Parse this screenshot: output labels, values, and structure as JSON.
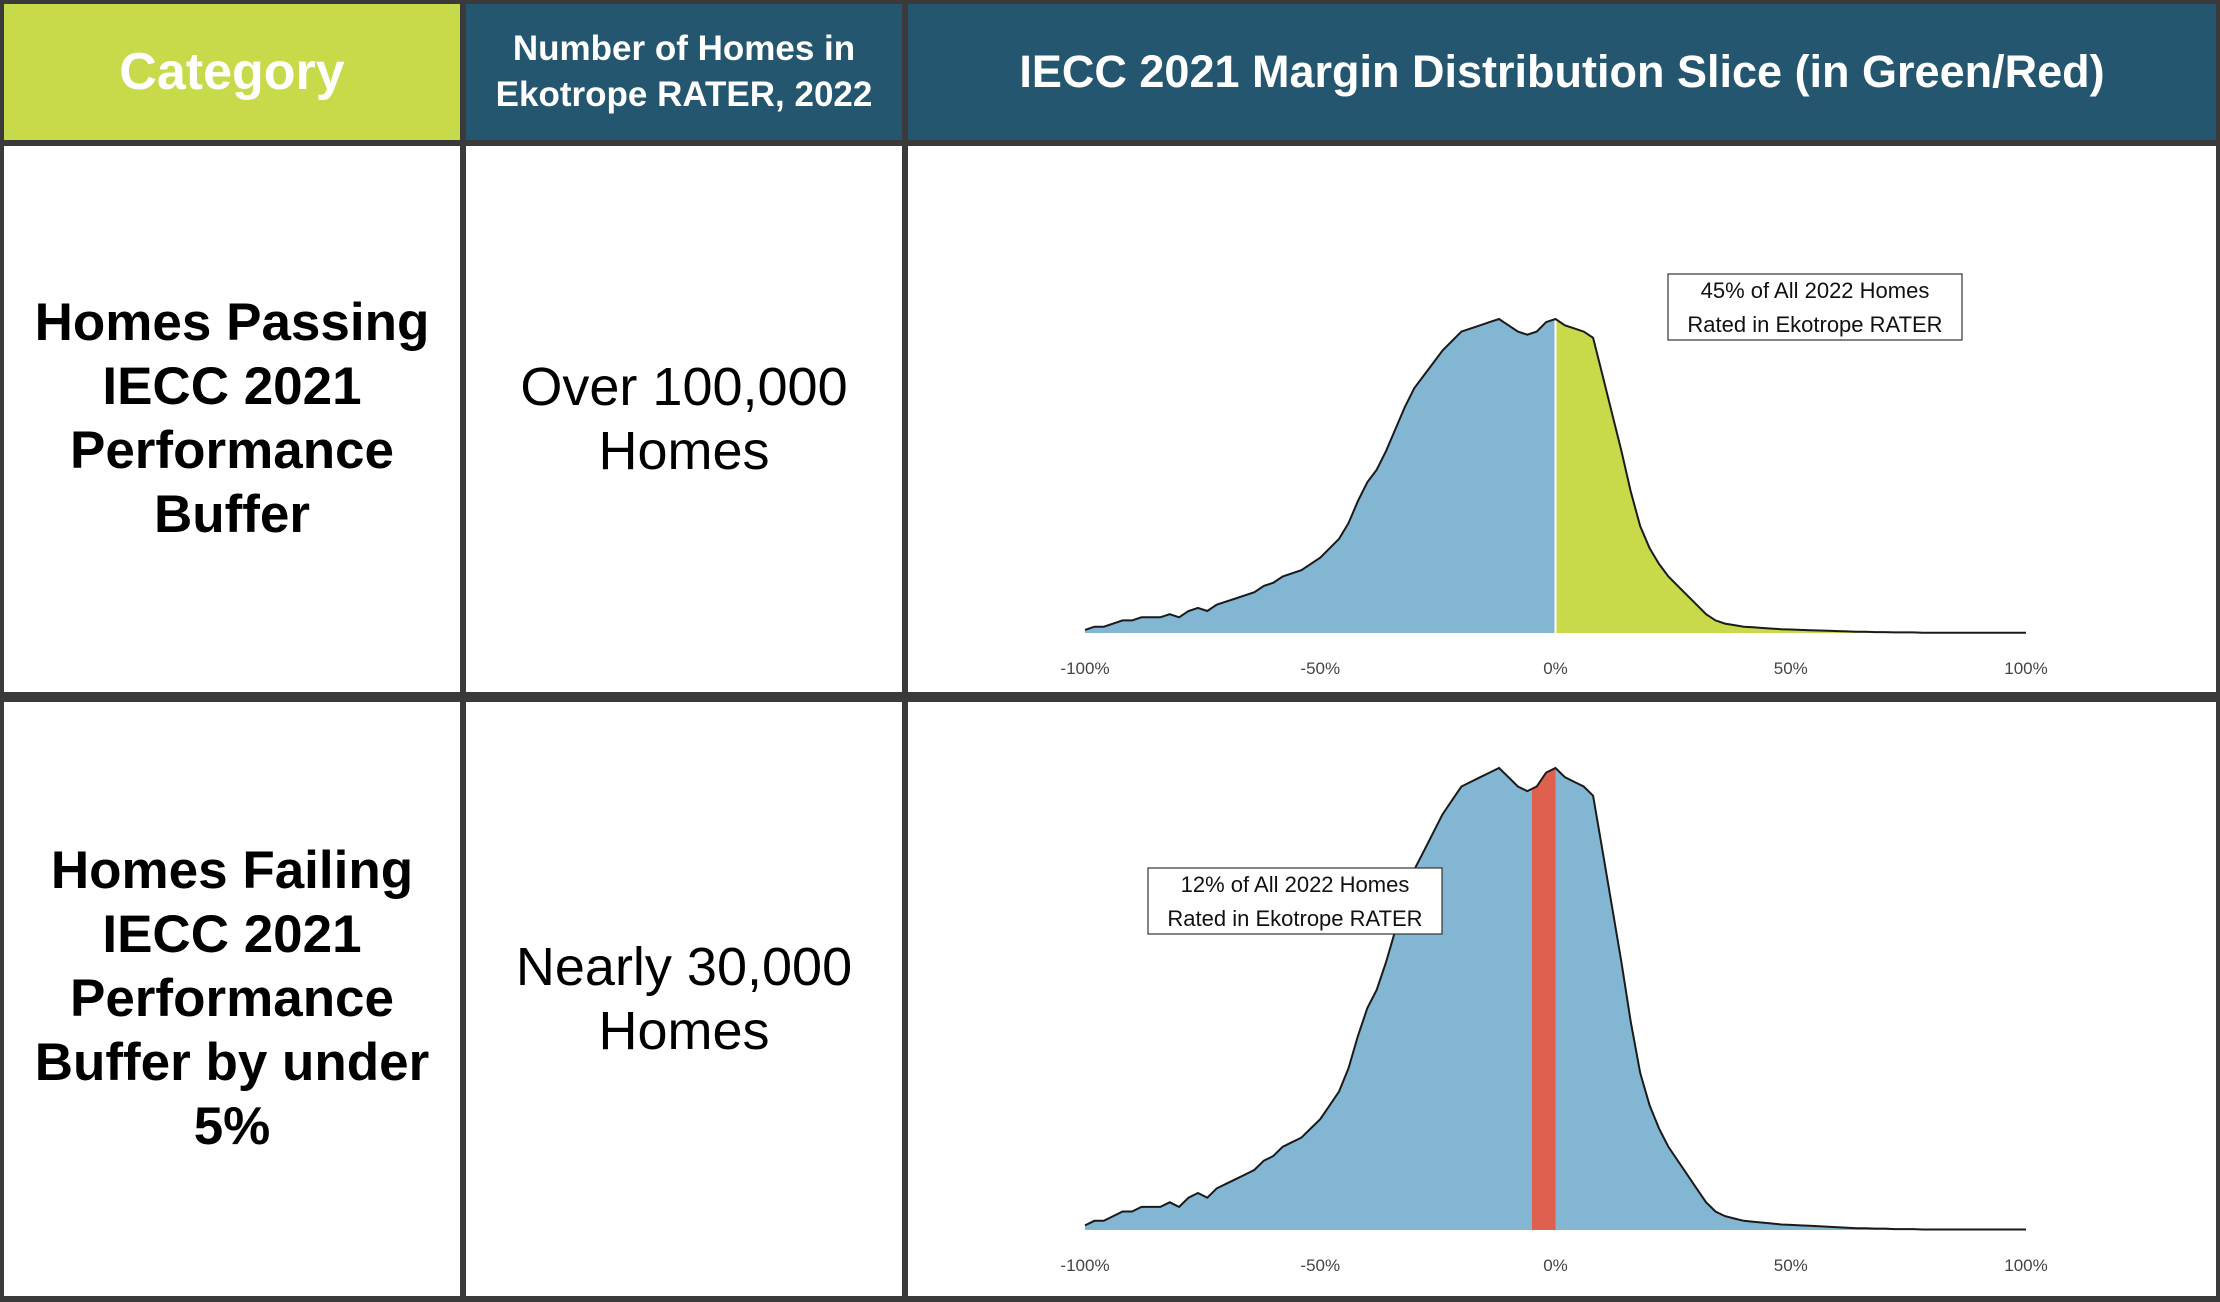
{
  "header": {
    "category": "Category",
    "number": "Number of Homes in Ekotrope RATER, 2022",
    "chart": "IECC 2021 Margin Distribution Slice (in Green/Red)"
  },
  "rows": [
    {
      "category": "Homes Passing IECC 2021 Performance Buffer",
      "count": "Over 100,000 Homes"
    },
    {
      "category": "Homes Failing IECC 2021 Performance Buffer by under 5%",
      "count": "Nearly 30,000 Homes"
    }
  ],
  "colors": {
    "green": "#c8d94a",
    "blue_header": "#24576f",
    "density": "#82b6d3",
    "red": "#e0604f",
    "border": "#3a3a3a"
  },
  "chart_data": [
    {
      "type": "area",
      "title": "Homes Passing IECC 2021 Performance Buffer",
      "xlabel": "",
      "ylabel": "",
      "xlim": [
        -100,
        100
      ],
      "ylim": [
        0,
        1
      ],
      "xticks": [
        "-100%",
        "-50%",
        "0%",
        "50%",
        "100%"
      ],
      "tick_values": [
        -100,
        -50,
        0,
        50,
        100
      ],
      "highlight": {
        "from": 0,
        "to": 100,
        "color": "#c8d94a"
      },
      "annotation": "45% of All 2022 Homes\nRated in Ekotrope RATER",
      "x": [
        -100,
        -98,
        -96,
        -94,
        -92,
        -90,
        -88,
        -86,
        -84,
        -82,
        -80,
        -78,
        -76,
        -74,
        -72,
        -70,
        -68,
        -66,
        -64,
        -62,
        -60,
        -58,
        -56,
        -54,
        -52,
        -50,
        -48,
        -46,
        -44,
        -42,
        -40,
        -38,
        -36,
        -34,
        -32,
        -30,
        -28,
        -26,
        -24,
        -22,
        -20,
        -18,
        -16,
        -14,
        -12,
        -10,
        -8,
        -6,
        -4,
        -2,
        0,
        2,
        4,
        6,
        8,
        10,
        12,
        14,
        16,
        18,
        20,
        22,
        24,
        26,
        28,
        30,
        32,
        34,
        36,
        38,
        40,
        42,
        44,
        46,
        48,
        50,
        52,
        54,
        56,
        58,
        60,
        62,
        64,
        66,
        68,
        70,
        72,
        74,
        76,
        78,
        80,
        85,
        90,
        95,
        100
      ],
      "y": [
        0.01,
        0.02,
        0.02,
        0.03,
        0.04,
        0.04,
        0.05,
        0.05,
        0.05,
        0.06,
        0.05,
        0.07,
        0.08,
        0.07,
        0.09,
        0.1,
        0.11,
        0.12,
        0.13,
        0.15,
        0.16,
        0.18,
        0.19,
        0.2,
        0.22,
        0.24,
        0.27,
        0.3,
        0.35,
        0.42,
        0.48,
        0.52,
        0.58,
        0.65,
        0.72,
        0.78,
        0.82,
        0.86,
        0.9,
        0.93,
        0.96,
        0.97,
        0.98,
        0.99,
        1.0,
        0.98,
        0.96,
        0.95,
        0.96,
        0.99,
        1.0,
        0.98,
        0.97,
        0.96,
        0.94,
        0.82,
        0.7,
        0.58,
        0.45,
        0.34,
        0.27,
        0.22,
        0.18,
        0.15,
        0.12,
        0.09,
        0.06,
        0.04,
        0.03,
        0.025,
        0.02,
        0.018,
        0.016,
        0.014,
        0.012,
        0.011,
        0.01,
        0.009,
        0.008,
        0.007,
        0.006,
        0.005,
        0.004,
        0.004,
        0.003,
        0.003,
        0.002,
        0.002,
        0.002,
        0.001,
        0.001,
        0.001,
        0.001,
        0.001,
        0.001
      ]
    },
    {
      "type": "area",
      "title": "Homes Failing IECC 2021 Performance Buffer by under 5%",
      "xlabel": "",
      "ylabel": "",
      "xlim": [
        -100,
        100
      ],
      "ylim": [
        0,
        1
      ],
      "xticks": [
        "-100%",
        "-50%",
        "0%",
        "50%",
        "100%"
      ],
      "tick_values": [
        -100,
        -50,
        0,
        50,
        100
      ],
      "highlight": {
        "from": -5,
        "to": 0,
        "color": "#e0604f"
      },
      "annotation": "12% of All 2022 Homes\nRated in Ekotrope RATER",
      "x": [
        -100,
        -98,
        -96,
        -94,
        -92,
        -90,
        -88,
        -86,
        -84,
        -82,
        -80,
        -78,
        -76,
        -74,
        -72,
        -70,
        -68,
        -66,
        -64,
        -62,
        -60,
        -58,
        -56,
        -54,
        -52,
        -50,
        -48,
        -46,
        -44,
        -42,
        -40,
        -38,
        -36,
        -34,
        -32,
        -30,
        -28,
        -26,
        -24,
        -22,
        -20,
        -18,
        -16,
        -14,
        -12,
        -10,
        -8,
        -6,
        -4,
        -2,
        0,
        2,
        4,
        6,
        8,
        10,
        12,
        14,
        16,
        18,
        20,
        22,
        24,
        26,
        28,
        30,
        32,
        34,
        36,
        38,
        40,
        42,
        44,
        46,
        48,
        50,
        52,
        54,
        56,
        58,
        60,
        62,
        64,
        66,
        68,
        70,
        72,
        74,
        76,
        78,
        80,
        85,
        90,
        95,
        100
      ],
      "y": [
        0.01,
        0.02,
        0.02,
        0.03,
        0.04,
        0.04,
        0.05,
        0.05,
        0.05,
        0.06,
        0.05,
        0.07,
        0.08,
        0.07,
        0.09,
        0.1,
        0.11,
        0.12,
        0.13,
        0.15,
        0.16,
        0.18,
        0.19,
        0.2,
        0.22,
        0.24,
        0.27,
        0.3,
        0.35,
        0.42,
        0.48,
        0.52,
        0.58,
        0.65,
        0.72,
        0.78,
        0.82,
        0.86,
        0.9,
        0.93,
        0.96,
        0.97,
        0.98,
        0.99,
        1.0,
        0.98,
        0.96,
        0.95,
        0.96,
        0.99,
        1.0,
        0.98,
        0.97,
        0.96,
        0.94,
        0.82,
        0.7,
        0.58,
        0.45,
        0.34,
        0.27,
        0.22,
        0.18,
        0.15,
        0.12,
        0.09,
        0.06,
        0.04,
        0.03,
        0.025,
        0.02,
        0.018,
        0.016,
        0.014,
        0.012,
        0.011,
        0.01,
        0.009,
        0.008,
        0.007,
        0.006,
        0.005,
        0.004,
        0.004,
        0.003,
        0.003,
        0.002,
        0.002,
        0.002,
        0.001,
        0.001,
        0.001,
        0.001,
        0.001,
        0.001
      ]
    }
  ]
}
